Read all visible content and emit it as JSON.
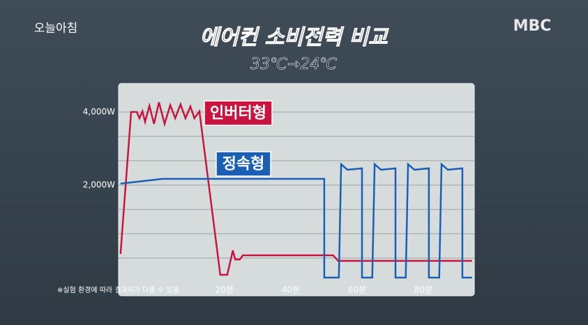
{
  "logo": "오늘아침",
  "broadcaster": "MBC",
  "chart_data": {
    "type": "line",
    "title": "에어컨 소비전력 비교",
    "subtitle": "33℃→24℃",
    "note": "※실험 환경에 따라 결과치가 다를 수 있음",
    "xlim": [
      -12,
      95.4
    ],
    "xticks": [
      {
        "value": 20,
        "label": "20분"
      },
      {
        "value": 40,
        "label": "40분"
      },
      {
        "value": 60,
        "label": "60분"
      },
      {
        "value": 80,
        "label": "80분"
      }
    ],
    "ylim": [
      -1030,
      4780
    ],
    "yticks": [
      {
        "value": 0,
        "label": null
      },
      {
        "value": 667,
        "label": null
      },
      {
        "value": 1333,
        "label": null
      },
      {
        "value": 2000,
        "label": "2,000W"
      },
      {
        "value": 2667,
        "label": null
      },
      {
        "value": 3333,
        "label": null
      },
      {
        "value": 4000,
        "label": "4,000W"
      }
    ],
    "grid": true,
    "series": [
      {
        "name": "인버터형",
        "color": "#c8143f",
        "x": [
          -11.4,
          -8.2,
          -6.5,
          -5.7,
          -4.8,
          -4.0,
          -2.7,
          -1.3,
          0.2,
          1.9,
          3.6,
          5.1,
          6.7,
          8.2,
          9.7,
          10.9,
          12.4,
          18.7,
          20.8,
          22.5,
          23.2,
          24.6,
          25.5,
          52.8,
          54.3,
          94.7
        ],
        "values": [
          114,
          4000,
          4000,
          3829,
          4019,
          3733,
          4171,
          3676,
          4267,
          3676,
          4190,
          3829,
          4210,
          3829,
          4152,
          3829,
          4019,
          -457,
          -457,
          210,
          -38,
          -38,
          76,
          76,
          -76,
          -76
        ]
      },
      {
        "name": "정속형",
        "color": "#1a5fb4",
        "x": [
          -11.4,
          1.3,
          50.1,
          50.1,
          54.5,
          55.2,
          57.1,
          61.5,
          61.5,
          64.6,
          65.3,
          67.2,
          71.6,
          71.6,
          74.7,
          75.4,
          77.3,
          81.7,
          81.7,
          84.8,
          85.5,
          87.4,
          91.8,
          91.8,
          94.7
        ],
        "values": [
          2038,
          2171,
          2171,
          -533,
          -533,
          2571,
          2419,
          2457,
          -533,
          -533,
          2571,
          2419,
          2457,
          -533,
          -533,
          2571,
          2419,
          2457,
          -533,
          -533,
          2571,
          2419,
          2457,
          -533,
          -533
        ]
      }
    ]
  }
}
